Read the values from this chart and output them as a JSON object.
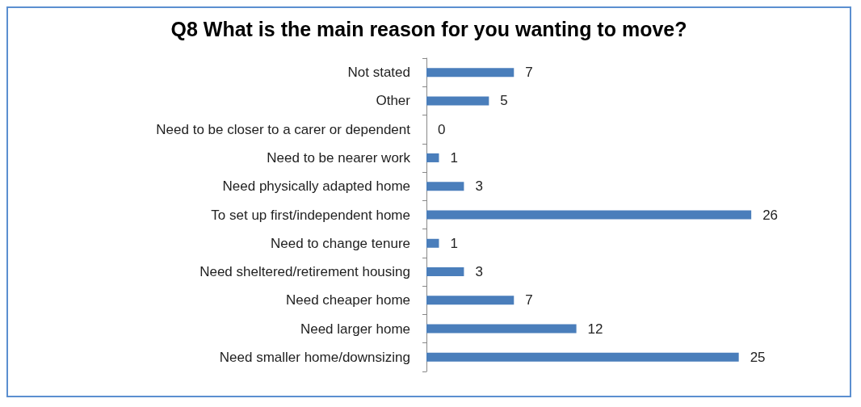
{
  "chart_data": {
    "type": "bar",
    "orientation": "horizontal",
    "title": "Q8 What is the main reason for you wanting to move?",
    "categories": [
      "Not stated",
      "Other",
      "Need to be closer to a carer or dependent",
      "Need to be nearer work",
      "Need physically adapted home",
      "To set up first/independent home",
      "Need to change tenure",
      "Need sheltered/retirement housing",
      "Need cheaper home",
      "Need larger home",
      "Need smaller home/downsizing"
    ],
    "values": [
      7,
      5,
      0,
      1,
      3,
      26,
      1,
      3,
      7,
      12,
      25
    ],
    "color": "#4a7ebb",
    "data_labels": true
  }
}
